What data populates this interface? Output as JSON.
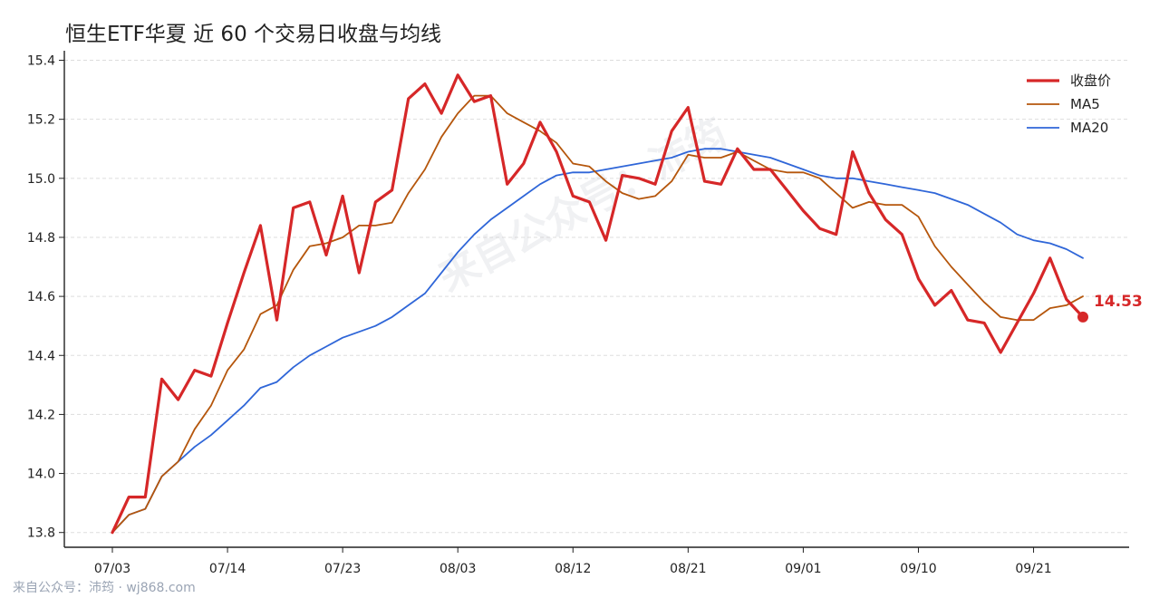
{
  "title": "恒生ETF华夏 近 60 个交易日收盘与均线",
  "footer": "来自公众号：沛筠 · wj868.com",
  "watermark": "来自公众号：沛筠",
  "colors": {
    "close": "#d62728",
    "ma5": "#b5560c",
    "ma20": "#2f66d8",
    "grid": "#dddddd",
    "axis": "#222222"
  },
  "chart_data": {
    "type": "line",
    "ylim": [
      13.75,
      15.42
    ],
    "yticks": [
      13.8,
      14.0,
      14.2,
      14.4,
      14.6,
      14.8,
      15.0,
      15.2,
      15.4
    ],
    "ytick_labels": [
      "13.8",
      "14.0",
      "14.2",
      "14.4",
      "14.6",
      "14.8",
      "15.0",
      "15.2",
      "15.4"
    ],
    "xticks": [
      {
        "index": 0,
        "label": "07/03"
      },
      {
        "index": 7,
        "label": "07/14"
      },
      {
        "index": 14,
        "label": "07/23"
      },
      {
        "index": 21,
        "label": "08/03"
      },
      {
        "index": 28,
        "label": "08/12"
      },
      {
        "index": 35,
        "label": "08/21"
      },
      {
        "index": 42,
        "label": "09/01"
      },
      {
        "index": 49,
        "label": "09/10"
      },
      {
        "index": 56,
        "label": "09/21"
      }
    ],
    "grid": true,
    "legend_position": "top-right",
    "last_value_label": "14.53",
    "series": [
      {
        "name": "收盘价",
        "key": "close",
        "values": [
          13.8,
          13.92,
          13.92,
          14.32,
          14.25,
          14.35,
          14.33,
          14.51,
          14.68,
          14.84,
          14.52,
          14.9,
          14.92,
          14.74,
          14.94,
          14.68,
          14.92,
          14.96,
          15.27,
          15.32,
          15.22,
          15.35,
          15.26,
          15.28,
          14.98,
          15.05,
          15.19,
          15.09,
          14.94,
          14.92,
          14.79,
          15.01,
          15.0,
          14.98,
          15.16,
          15.24,
          14.99,
          14.98,
          15.1,
          15.03,
          15.03,
          14.96,
          14.89,
          14.83,
          14.81,
          15.09,
          14.95,
          14.86,
          14.81,
          14.66,
          14.57,
          14.62,
          14.52,
          14.51,
          14.41,
          14.51,
          14.61,
          14.73,
          14.59,
          14.53
        ]
      },
      {
        "name": "MA5",
        "key": "ma5",
        "values": [
          13.8,
          13.86,
          13.88,
          13.99,
          14.04,
          14.15,
          14.23,
          14.35,
          14.42,
          14.54,
          14.57,
          14.69,
          14.77,
          14.78,
          14.8,
          14.84,
          14.84,
          14.85,
          14.95,
          15.03,
          15.14,
          15.22,
          15.28,
          15.28,
          15.22,
          15.19,
          15.16,
          15.12,
          15.05,
          15.04,
          14.99,
          14.95,
          14.93,
          14.94,
          14.99,
          15.08,
          15.07,
          15.07,
          15.09,
          15.06,
          15.03,
          15.02,
          15.02,
          15.0,
          14.95,
          14.9,
          14.92,
          14.91,
          14.91,
          14.87,
          14.77,
          14.7,
          14.64,
          14.58,
          14.53,
          14.52,
          14.52,
          14.56,
          14.57,
          14.6
        ]
      },
      {
        "name": "MA20",
        "key": "ma20",
        "values": [
          13.8,
          13.86,
          13.88,
          13.99,
          14.04,
          14.09,
          14.13,
          14.18,
          14.23,
          14.29,
          14.31,
          14.36,
          14.4,
          14.43,
          14.46,
          14.48,
          14.5,
          14.53,
          14.57,
          14.61,
          14.68,
          14.75,
          14.81,
          14.86,
          14.9,
          14.94,
          14.98,
          15.01,
          15.02,
          15.02,
          15.03,
          15.04,
          15.05,
          15.06,
          15.07,
          15.09,
          15.1,
          15.1,
          15.09,
          15.08,
          15.07,
          15.05,
          15.03,
          15.01,
          15.0,
          15.0,
          14.99,
          14.98,
          14.97,
          14.96,
          14.95,
          14.93,
          14.91,
          14.88,
          14.85,
          14.81,
          14.79,
          14.78,
          14.76,
          14.73
        ]
      }
    ]
  }
}
